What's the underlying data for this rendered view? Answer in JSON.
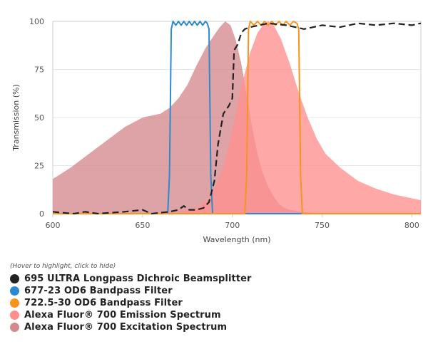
{
  "chart_data": {
    "type": "area",
    "xlabel": "Wavelength (nm)",
    "ylabel": "Transmission (%)",
    "xlim": [
      600,
      805
    ],
    "ylim": [
      0,
      100
    ],
    "x_ticks": [
      600,
      650,
      700,
      750,
      800
    ],
    "y_ticks": [
      0,
      25,
      50,
      75,
      100
    ],
    "grid": "horizontal",
    "legend_position": "bottom",
    "series": [
      {
        "name": "Alexa Fluor® 700 Excitation Spectrum",
        "kind": "area",
        "color": "#d3898d",
        "points": [
          [
            600,
            18
          ],
          [
            610,
            24
          ],
          [
            620,
            31
          ],
          [
            630,
            38
          ],
          [
            640,
            45
          ],
          [
            650,
            50
          ],
          [
            660,
            52
          ],
          [
            665,
            55
          ],
          [
            670,
            60
          ],
          [
            675,
            67
          ],
          [
            680,
            77
          ],
          [
            685,
            86
          ],
          [
            690,
            93
          ],
          [
            693,
            97
          ],
          [
            696,
            100
          ],
          [
            699,
            98
          ],
          [
            702,
            90
          ],
          [
            705,
            78
          ],
          [
            708,
            62
          ],
          [
            711,
            45
          ],
          [
            714,
            31
          ],
          [
            717,
            21
          ],
          [
            720,
            14
          ],
          [
            723,
            9
          ],
          [
            726,
            5
          ],
          [
            729,
            3
          ],
          [
            732,
            2
          ],
          [
            738,
            1
          ],
          [
            750,
            0
          ],
          [
            805,
            0
          ]
        ]
      },
      {
        "name": "Alexa Fluor® 700 Emission Spectrum",
        "kind": "area",
        "color": "#ff8f8f",
        "points": [
          [
            600,
            0
          ],
          [
            660,
            0
          ],
          [
            670,
            1
          ],
          [
            680,
            3
          ],
          [
            686,
            7
          ],
          [
            690,
            13
          ],
          [
            695,
            24
          ],
          [
            700,
            43
          ],
          [
            705,
            66
          ],
          [
            710,
            84
          ],
          [
            714,
            94
          ],
          [
            717,
            98
          ],
          [
            720,
            100
          ],
          [
            723,
            98
          ],
          [
            727,
            91
          ],
          [
            732,
            78
          ],
          [
            737,
            63
          ],
          [
            742,
            50
          ],
          [
            747,
            39
          ],
          [
            752,
            31
          ],
          [
            760,
            24
          ],
          [
            770,
            17
          ],
          [
            780,
            13
          ],
          [
            790,
            10
          ],
          [
            800,
            8
          ],
          [
            805,
            7
          ]
        ]
      },
      {
        "name": "677-23 OD6 Bandpass Filter",
        "kind": "line",
        "color": "#2c8ad0",
        "points": [
          [
            600,
            0
          ],
          [
            664,
            0
          ],
          [
            665,
            20
          ],
          [
            666,
            96
          ],
          [
            667,
            100
          ],
          [
            668.5,
            98
          ],
          [
            670,
            100
          ],
          [
            671.5,
            98
          ],
          [
            673,
            100
          ],
          [
            674.5,
            98
          ],
          [
            676,
            100
          ],
          [
            677.5,
            98
          ],
          [
            679,
            100
          ],
          [
            680.5,
            98
          ],
          [
            682,
            100
          ],
          [
            683.5,
            98
          ],
          [
            685,
            100
          ],
          [
            686,
            99
          ],
          [
            687,
            96
          ],
          [
            688,
            20
          ],
          [
            689,
            0
          ],
          [
            805,
            0
          ]
        ]
      },
      {
        "name": "722.5-30 OD6 Bandpass Filter",
        "kind": "line",
        "color": "#f7941d",
        "points": [
          [
            600,
            0
          ],
          [
            707,
            0
          ],
          [
            708,
            20
          ],
          [
            709,
            96
          ],
          [
            710,
            100
          ],
          [
            712,
            98
          ],
          [
            714,
            100
          ],
          [
            716,
            98
          ],
          [
            718,
            100
          ],
          [
            720,
            98
          ],
          [
            722,
            100
          ],
          [
            724,
            98
          ],
          [
            726,
            100
          ],
          [
            728,
            98
          ],
          [
            730,
            100
          ],
          [
            732,
            98
          ],
          [
            734,
            100
          ],
          [
            736,
            99
          ],
          [
            737,
            96
          ],
          [
            738,
            20
          ],
          [
            739,
            0
          ],
          [
            805,
            0
          ]
        ]
      },
      {
        "name": "695 ULTRA Longpass Dichroic Beamsplitter",
        "kind": "dashed-line",
        "color": "#222222",
        "points": [
          [
            600,
            1
          ],
          [
            605,
            0.5
          ],
          [
            612,
            0
          ],
          [
            618,
            1
          ],
          [
            625,
            0
          ],
          [
            640,
            1
          ],
          [
            650,
            2
          ],
          [
            655,
            0
          ],
          [
            665,
            1
          ],
          [
            670,
            2
          ],
          [
            673,
            4
          ],
          [
            676,
            2
          ],
          [
            680,
            2
          ],
          [
            684,
            3
          ],
          [
            687,
            6
          ],
          [
            690,
            17
          ],
          [
            692,
            36
          ],
          [
            695,
            52
          ],
          [
            698,
            56
          ],
          [
            700,
            60
          ],
          [
            701,
            85
          ],
          [
            703,
            88
          ],
          [
            705,
            94
          ],
          [
            707,
            96
          ],
          [
            710,
            97
          ],
          [
            715,
            98
          ],
          [
            720,
            99
          ],
          [
            730,
            98
          ],
          [
            740,
            96
          ],
          [
            750,
            98
          ],
          [
            760,
            97
          ],
          [
            770,
            99
          ],
          [
            780,
            98
          ],
          [
            790,
            99
          ],
          [
            800,
            98
          ],
          [
            805,
            99
          ]
        ]
      }
    ]
  },
  "legend": {
    "hint": "(Hover to highlight, click to hide)",
    "items": [
      {
        "label": "695 ULTRA Longpass Dichroic Beamsplitter",
        "color": "#222222"
      },
      {
        "label": "677-23 OD6 Bandpass Filter",
        "color": "#2c8ad0"
      },
      {
        "label": "722.5-30 OD6 Bandpass Filter",
        "color": "#f7941d"
      },
      {
        "label": "Alexa Fluor® 700 Emission Spectrum",
        "color": "#ff8f8f"
      },
      {
        "label": "Alexa Fluor® 700 Excitation Spectrum",
        "color": "#d3898d"
      }
    ]
  }
}
